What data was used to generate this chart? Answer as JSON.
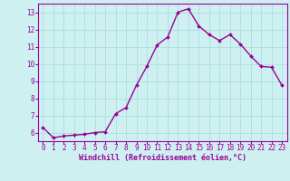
{
  "x": [
    0,
    1,
    2,
    3,
    4,
    5,
    6,
    7,
    8,
    9,
    10,
    11,
    12,
    13,
    14,
    15,
    16,
    17,
    18,
    19,
    20,
    21,
    22,
    23
  ],
  "y": [
    6.3,
    5.7,
    5.8,
    5.85,
    5.9,
    6.0,
    6.05,
    7.1,
    7.45,
    8.75,
    9.85,
    11.1,
    11.55,
    13.0,
    13.2,
    12.2,
    11.7,
    11.35,
    11.7,
    11.15,
    10.45,
    9.85,
    9.8,
    8.75
  ],
  "line_color": "#990099",
  "marker": "D",
  "marker_size": 2.0,
  "line_width": 1.0,
  "background_color": "#cff0f0",
  "grid_color": "#aadddd",
  "xlabel": "Windchill (Refroidissement éolien,°C)",
  "xlabel_color": "#990099",
  "tick_color": "#990099",
  "ylim": [
    5.5,
    13.5
  ],
  "xlim": [
    -0.5,
    23.5
  ],
  "yticks": [
    6,
    7,
    8,
    9,
    10,
    11,
    12,
    13
  ],
  "xticks": [
    0,
    1,
    2,
    3,
    4,
    5,
    6,
    7,
    8,
    9,
    10,
    11,
    12,
    13,
    14,
    15,
    16,
    17,
    18,
    19,
    20,
    21,
    22,
    23
  ],
  "xtick_labels": [
    "0",
    "1",
    "2",
    "3",
    "4",
    "5",
    "6",
    "7",
    "8",
    "9",
    "10",
    "11",
    "12",
    "13",
    "14",
    "15",
    "16",
    "17",
    "18",
    "19",
    "20",
    "21",
    "22",
    "23"
  ],
  "ytick_labels": [
    "6",
    "7",
    "8",
    "9",
    "10",
    "11",
    "12",
    "13"
  ],
  "spine_color": "#990099",
  "figure_bg": "#cff0f0",
  "xlabel_fontsize": 6.0,
  "tick_fontsize": 5.5
}
